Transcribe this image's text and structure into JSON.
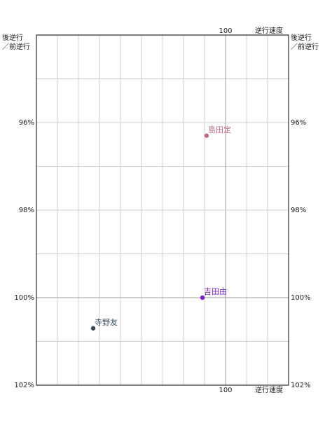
{
  "chart_data": {
    "type": "scatter",
    "x_axis_label": "逆行速度",
    "y_axis_label": [
      "後逆行",
      "／前逆行"
    ],
    "xlim": [
      91,
      103
    ],
    "xticks": [
      100
    ],
    "xgrid_step": 1,
    "ylim": [
      94,
      102
    ],
    "ygrid_step": 1,
    "yticks": [
      {
        "value": 96,
        "label": "96%"
      },
      {
        "value": 98,
        "label": "98%"
      },
      {
        "value": 100,
        "label": "100%"
      },
      {
        "value": 102,
        "label": "102%"
      }
    ],
    "y_inverted": true,
    "grid": true,
    "series": [
      {
        "name": "島田定",
        "color": "#c06a8c",
        "x": [
          99.1
        ],
        "values": [
          96.3
        ]
      },
      {
        "name": "吉田由",
        "color": "#7a22c8",
        "x": [
          98.9
        ],
        "values": [
          100.0
        ]
      },
      {
        "name": "寺野友",
        "color": "#34495e",
        "x": [
          93.7
        ],
        "values": [
          100.7
        ]
      }
    ]
  }
}
